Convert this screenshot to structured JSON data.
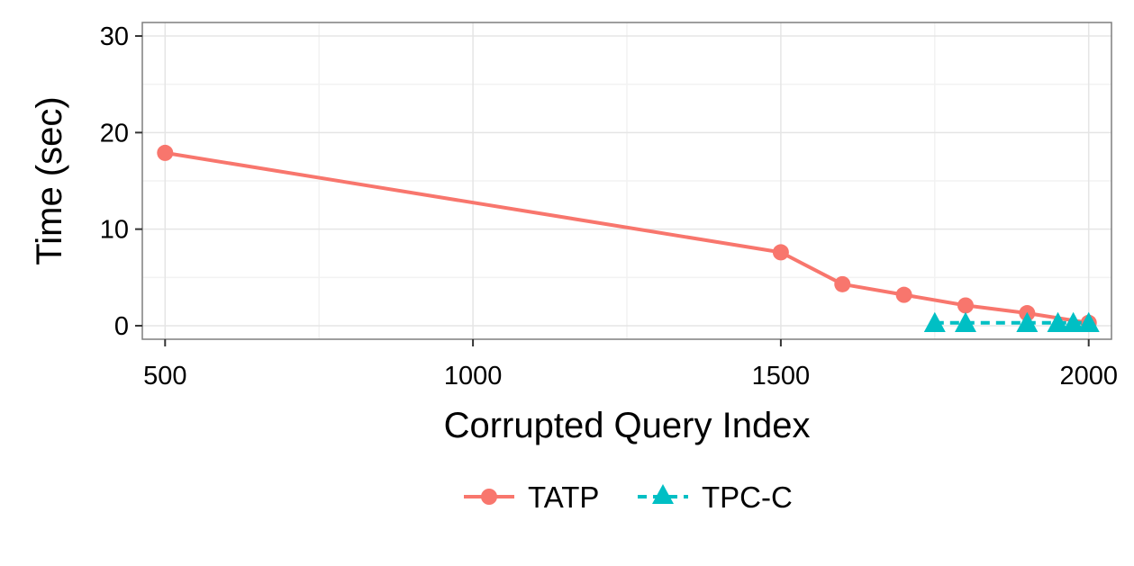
{
  "chart_data": {
    "type": "line",
    "xlabel": "Corrupted Query Index",
    "ylabel": "Time (sec)",
    "xlim": [
      463,
      2037
    ],
    "ylim": [
      -1.4,
      31.4
    ],
    "x_ticks": [
      500,
      1000,
      1500,
      2000
    ],
    "x_tick_labels": [
      "500",
      "1000",
      "1500",
      "2000"
    ],
    "y_ticks": [
      0,
      10,
      20,
      30
    ],
    "y_tick_labels": [
      "0",
      "10",
      "20",
      "30"
    ],
    "grid": true,
    "legend_position": "bottom",
    "series": [
      {
        "name": "TATP",
        "color": "#F8766D",
        "marker": "circle",
        "line_style": "solid",
        "x": [
          500,
          1500,
          1600,
          1700,
          1800,
          1900,
          2000
        ],
        "y": [
          17.9,
          7.6,
          4.3,
          3.2,
          2.1,
          1.3,
          0.3
        ]
      },
      {
        "name": "TPC-C",
        "color": "#00BFC4",
        "marker": "triangle",
        "line_style": "dashed",
        "x": [
          1750,
          1800,
          1900,
          1950,
          1975,
          2000
        ],
        "y": [
          0.3,
          0.3,
          0.3,
          0.3,
          0.3,
          0.3
        ]
      }
    ]
  }
}
